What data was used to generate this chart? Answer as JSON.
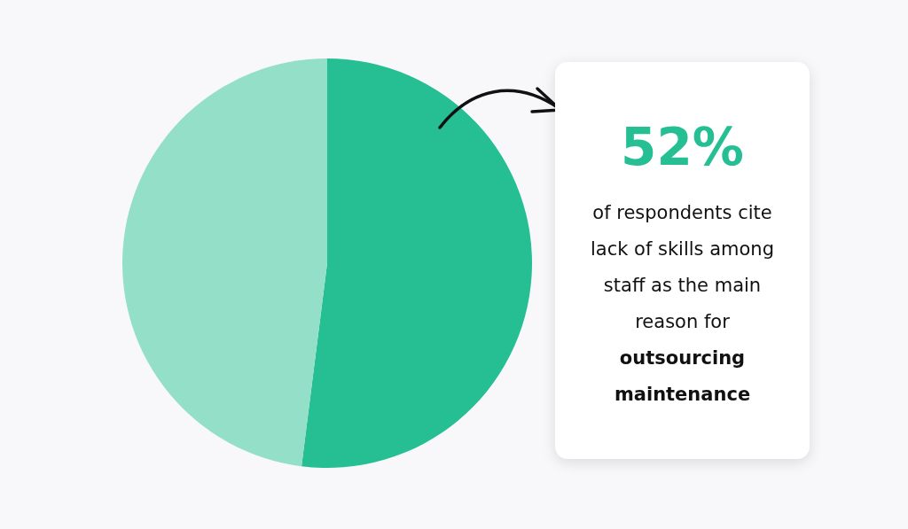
{
  "chart_data": {
    "type": "pie",
    "categories": [
      null,
      null
    ],
    "values": [
      52,
      48
    ],
    "colors": [
      "#26bf94",
      "#93dfc8"
    ],
    "annotations": [
      "52%",
      "of respondents cite lack of skills among staff as the main reason for",
      "outsourcing maintenance"
    ]
  }
}
